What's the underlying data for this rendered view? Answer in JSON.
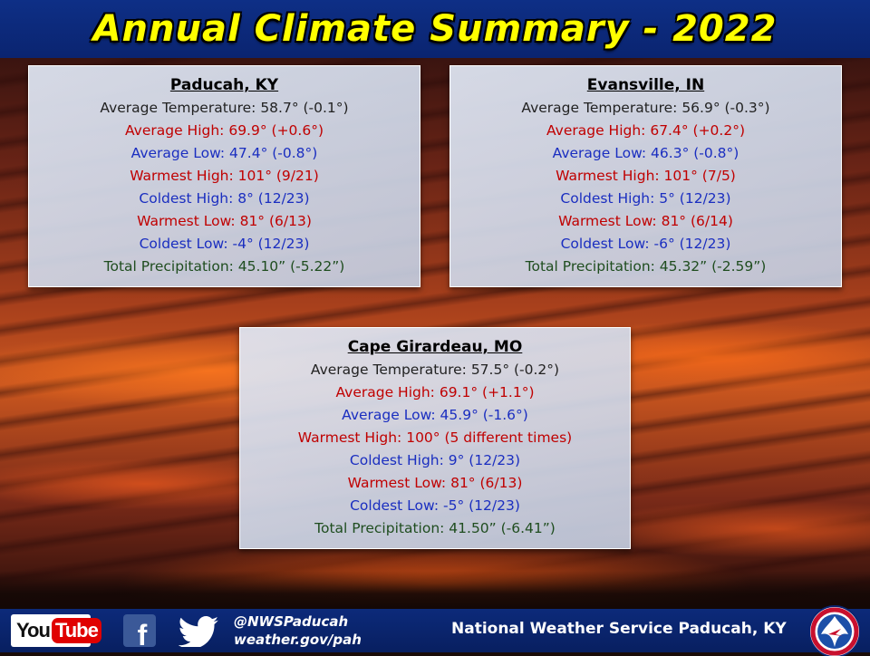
{
  "title": "Annual Climate Summary - 2022",
  "cards": [
    {
      "id": "paducah",
      "station": "Paducah, KY",
      "rows": [
        {
          "text": "Average Temperature: 58.7° (-0.1°)",
          "color": "black"
        },
        {
          "text": "Average High: 69.9° (+0.6°)",
          "color": "red"
        },
        {
          "text": "Average Low: 47.4° (-0.8°)",
          "color": "blue"
        },
        {
          "text": "Warmest High: 101° (9/21)",
          "color": "red"
        },
        {
          "text": "Coldest High: 8° (12/23)",
          "color": "blue"
        },
        {
          "text": "Warmest Low: 81° (6/13)",
          "color": "red"
        },
        {
          "text": "Coldest Low: -4° (12/23)",
          "color": "blue"
        },
        {
          "text": "Total Precipitation: 45.10” (-5.22”)",
          "color": "green"
        }
      ]
    },
    {
      "id": "evansville",
      "station": "Evansville, IN",
      "rows": [
        {
          "text": "Average Temperature: 56.9° (-0.3°)",
          "color": "black"
        },
        {
          "text": "Average High: 67.4° (+0.2°)",
          "color": "red"
        },
        {
          "text": "Average Low: 46.3° (-0.8°)",
          "color": "blue"
        },
        {
          "text": "Warmest High: 101° (7/5)",
          "color": "red"
        },
        {
          "text": "Coldest High: 5° (12/23)",
          "color": "blue"
        },
        {
          "text": "Warmest Low: 81° (6/14)",
          "color": "red"
        },
        {
          "text": "Coldest Low: -6° (12/23)",
          "color": "blue"
        },
        {
          "text": "Total Precipitation: 45.32” (-2.59”)",
          "color": "green"
        }
      ]
    },
    {
      "id": "cape",
      "station": "Cape Girardeau, MO",
      "rows": [
        {
          "text": "Average Temperature: 57.5° (-0.2°)",
          "color": "black"
        },
        {
          "text": "Average High: 69.1° (+1.1°)",
          "color": "red"
        },
        {
          "text": "Average Low: 45.9° (-1.6°)",
          "color": "blue"
        },
        {
          "text": "Warmest High: 100° (5 different times)",
          "color": "red"
        },
        {
          "text": "Coldest High: 9° (12/23)",
          "color": "blue"
        },
        {
          "text": "Warmest Low: 81° (6/13)",
          "color": "red"
        },
        {
          "text": "Coldest Low: -5° (12/23)",
          "color": "blue"
        },
        {
          "text": "Total Precipitation: 41.50” (-6.41”)",
          "color": "green"
        }
      ]
    }
  ],
  "footer": {
    "youtube_you": "You",
    "youtube_tube": "Tube",
    "facebook_letter": "f",
    "handle": "@NWSPaducah",
    "website": "weather.gov/pah",
    "office": "National Weather Service Paducah, KY"
  },
  "icons": [
    "youtube-logo",
    "facebook-icon",
    "twitter-icon",
    "nws-logo"
  ],
  "colors": {
    "title": "#ffff00",
    "banner": "#0a2470",
    "red": "#c00000",
    "blue": "#1a2ec0",
    "green": "#1f4d1f"
  }
}
